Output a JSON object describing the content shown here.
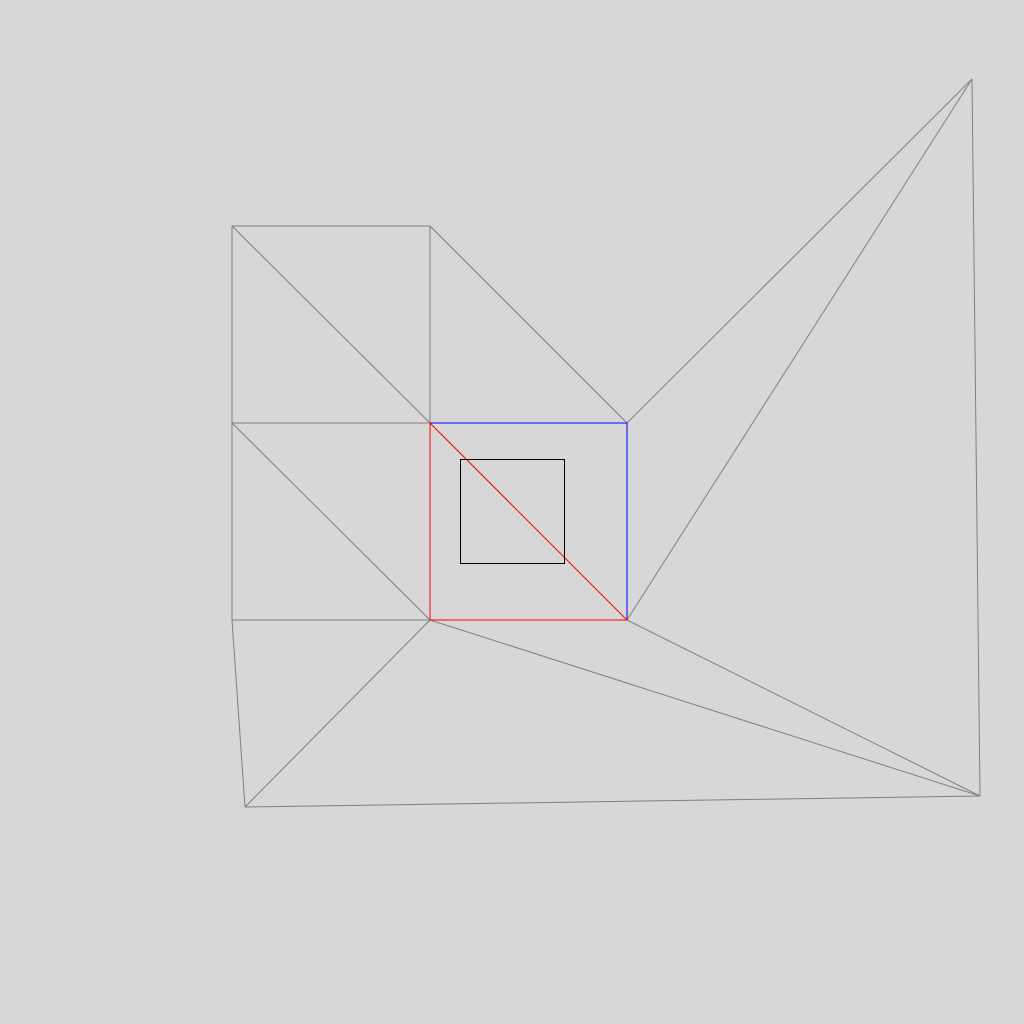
{
  "colors": {
    "background": "#d7d7d7",
    "mesh_edge": "#7f7f7f",
    "red_triangle": "#ff0000",
    "blue_triangle": "#0000ff",
    "inner_square": "#000000"
  }
}
